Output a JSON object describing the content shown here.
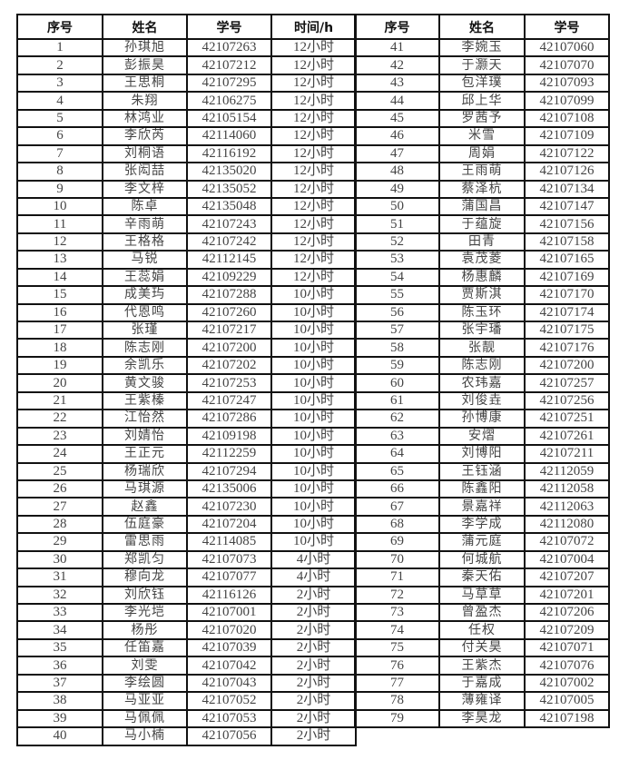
{
  "headers": {
    "seq": "序号",
    "name": "姓名",
    "id": "学号",
    "time": "时间/h"
  },
  "left_rows": [
    [
      "1",
      "孙琪旭",
      "42107263",
      "12小时"
    ],
    [
      "2",
      "彭振昊",
      "42107212",
      "12小时"
    ],
    [
      "3",
      "王思桐",
      "42107295",
      "12小时"
    ],
    [
      "4",
      "朱翔",
      "42106275",
      "12小时"
    ],
    [
      "5",
      "林鸿业",
      "42105154",
      "12小时"
    ],
    [
      "6",
      "李欣芮",
      "42114060",
      "12小时"
    ],
    [
      "7",
      "刘桐语",
      "42116192",
      "12小时"
    ],
    [
      "8",
      "张闳喆",
      "42135020",
      "12小时"
    ],
    [
      "9",
      "李文梓",
      "42135052",
      "12小时"
    ],
    [
      "10",
      "陈卓",
      "42135048",
      "12小时"
    ],
    [
      "11",
      "辛雨萌",
      "42107243",
      "12小时"
    ],
    [
      "12",
      "王格格",
      "42107242",
      "12小时"
    ],
    [
      "13",
      "马锐",
      "42112145",
      "12小时"
    ],
    [
      "14",
      "王蕊娟",
      "42109229",
      "12小时"
    ],
    [
      "15",
      "成美玙",
      "42107288",
      "10小时"
    ],
    [
      "16",
      "代恩鸣",
      "42107260",
      "10小时"
    ],
    [
      "17",
      "张瑾",
      "42107217",
      "10小时"
    ],
    [
      "18",
      "陈志刚",
      "42107200",
      "10小时"
    ],
    [
      "19",
      "余凯乐",
      "42107202",
      "10小时"
    ],
    [
      "20",
      "黄文骏",
      "42107253",
      "10小时"
    ],
    [
      "21",
      "王紫榛",
      "42107247",
      "10小时"
    ],
    [
      "22",
      "江怡然",
      "42107286",
      "10小时"
    ],
    [
      "23",
      "刘婧怡",
      "42109198",
      "10小时"
    ],
    [
      "24",
      "王正元",
      "42112259",
      "10小时"
    ],
    [
      "25",
      "杨瑞欣",
      "42107294",
      "10小时"
    ],
    [
      "26",
      "马琪源",
      "42135006",
      "10小时"
    ],
    [
      "27",
      "赵鑫",
      "42107230",
      "10小时"
    ],
    [
      "28",
      "伍庭豪",
      "42107204",
      "10小时"
    ],
    [
      "29",
      "雷思雨",
      "42114085",
      "10小时"
    ],
    [
      "30",
      "郑凯匀",
      "42107073",
      "4小时"
    ],
    [
      "31",
      "穆向龙",
      "42107077",
      "4小时"
    ],
    [
      "32",
      "刘欣钰",
      "42116126",
      "2小时"
    ],
    [
      "33",
      "李光垲",
      "42107001",
      "2小时"
    ],
    [
      "34",
      "杨彤",
      "42107020",
      "2小时"
    ],
    [
      "35",
      "任笛嘉",
      "42107039",
      "2小时"
    ],
    [
      "36",
      "刘雯",
      "42107042",
      "2小时"
    ],
    [
      "37",
      "李绘圆",
      "42107043",
      "2小时"
    ],
    [
      "38",
      "马亚亚",
      "42107052",
      "2小时"
    ],
    [
      "39",
      "马佩佩",
      "42107053",
      "2小时"
    ],
    [
      "40",
      "马小楠",
      "42107056",
      "2小时"
    ]
  ],
  "right_rows": [
    [
      "41",
      "李婉玉",
      "42107060"
    ],
    [
      "42",
      "于灏天",
      "42107070"
    ],
    [
      "43",
      "包洋璞",
      "42107093"
    ],
    [
      "44",
      "邱上华",
      "42107099"
    ],
    [
      "45",
      "罗茜予",
      "42107108"
    ],
    [
      "46",
      "米雪",
      "42107109"
    ],
    [
      "47",
      "周娟",
      "42107122"
    ],
    [
      "48",
      "王雨萌",
      "42107126"
    ],
    [
      "49",
      "蔡泽杭",
      "42107134"
    ],
    [
      "50",
      "蒲国昌",
      "42107147"
    ],
    [
      "51",
      "于蕴旋",
      "42107156"
    ],
    [
      "52",
      "田青",
      "42107158"
    ],
    [
      "53",
      "袁茂菱",
      "42107165"
    ],
    [
      "54",
      "杨惠麟",
      "42107169"
    ],
    [
      "55",
      "贾斯淇",
      "42107170"
    ],
    [
      "56",
      "陈玉环",
      "42107174"
    ],
    [
      "57",
      "张宇璠",
      "42107175"
    ],
    [
      "58",
      "张靓",
      "42107176"
    ],
    [
      "59",
      "陈志刚",
      "42107200"
    ],
    [
      "60",
      "农玮嘉",
      "42107257"
    ],
    [
      "61",
      "刘俊垚",
      "42107256"
    ],
    [
      "62",
      "孙博康",
      "42107251"
    ],
    [
      "63",
      "安熠",
      "42107261"
    ],
    [
      "64",
      "刘博阳",
      "42107211"
    ],
    [
      "65",
      "王钰涵",
      "42112059"
    ],
    [
      "66",
      "陈鑫阳",
      "42112058"
    ],
    [
      "67",
      "景嘉祥",
      "42112063"
    ],
    [
      "68",
      "李学成",
      "42112080"
    ],
    [
      "69",
      "蒲元庭",
      "42107072"
    ],
    [
      "70",
      "何城航",
      "42107004"
    ],
    [
      "71",
      "秦天佑",
      "42107207"
    ],
    [
      "72",
      "马草草",
      "42107201"
    ],
    [
      "73",
      "曾盈杰",
      "42107206"
    ],
    [
      "74",
      "任权",
      "42107209"
    ],
    [
      "75",
      "付关昊",
      "42107071"
    ],
    [
      "76",
      "王紫杰",
      "42107076"
    ],
    [
      "77",
      "于嘉成",
      "42107002"
    ],
    [
      "78",
      "薄雍译",
      "42107005"
    ],
    [
      "79",
      "李昊龙",
      "42107198"
    ]
  ]
}
